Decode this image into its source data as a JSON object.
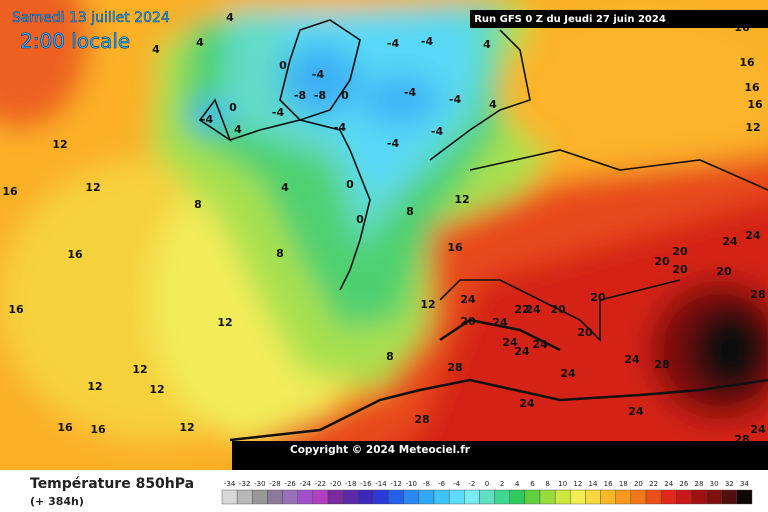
{
  "header": {
    "date": "Samedi 13 juillet 2024",
    "time": "2:00 locale",
    "run": "Run GFS 0 Z du Jeudi 27 juin 2024"
  },
  "copyright": "Copyright © 2024 Meteociel.fr",
  "footer": {
    "title": "Température 850hPa",
    "lead": "(+ 384h)"
  },
  "map_labels": [
    4,
    4,
    0,
    -4,
    -8,
    -8,
    0,
    -4,
    4,
    0,
    -4,
    -4,
    -4,
    -4,
    -4,
    -4,
    -4,
    -4,
    4,
    4,
    0,
    0,
    4,
    8,
    8,
    8,
    12,
    16,
    12,
    12,
    16,
    16,
    16,
    12,
    12,
    12,
    12,
    16,
    16,
    12,
    8,
    12,
    20,
    24,
    24,
    22,
    24,
    20,
    20,
    20,
    24,
    24,
    24,
    24,
    28,
    28,
    24,
    24,
    24,
    28,
    20,
    20,
    20,
    20,
    24,
    24,
    28,
    16,
    16,
    12,
    16,
    16,
    4,
    28,
    24,
    28,
    24
  ],
  "colorbar": {
    "ticks": [
      -34,
      -32,
      -30,
      -28,
      -26,
      -24,
      -22,
      -20,
      -18,
      -16,
      -14,
      -12,
      -10,
      -8,
      -6,
      -4,
      -2,
      0,
      2,
      4,
      6,
      8,
      10,
      12,
      14,
      16,
      18,
      20,
      22,
      24,
      26,
      28,
      30,
      32,
      34
    ],
    "colors": [
      "#d8d8d8",
      "#b8b8b8",
      "#989898",
      "#8c7898",
      "#9a70b8",
      "#a050c8",
      "#b040c0",
      "#7a2a9a",
      "#5a2aa8",
      "#3c28b8",
      "#2a3ad8",
      "#2560e8",
      "#2a88f0",
      "#30a8f6",
      "#40c4f8",
      "#5cdcfa",
      "#78ecf0",
      "#60e0c0",
      "#40d890",
      "#30c860",
      "#60d040",
      "#98dc40",
      "#cce840",
      "#f2f050",
      "#f8d840",
      "#f8b828",
      "#f89820",
      "#f07818",
      "#e85018",
      "#e02818",
      "#c81818",
      "#a01010",
      "#801010",
      "#501010",
      "#100808"
    ]
  }
}
